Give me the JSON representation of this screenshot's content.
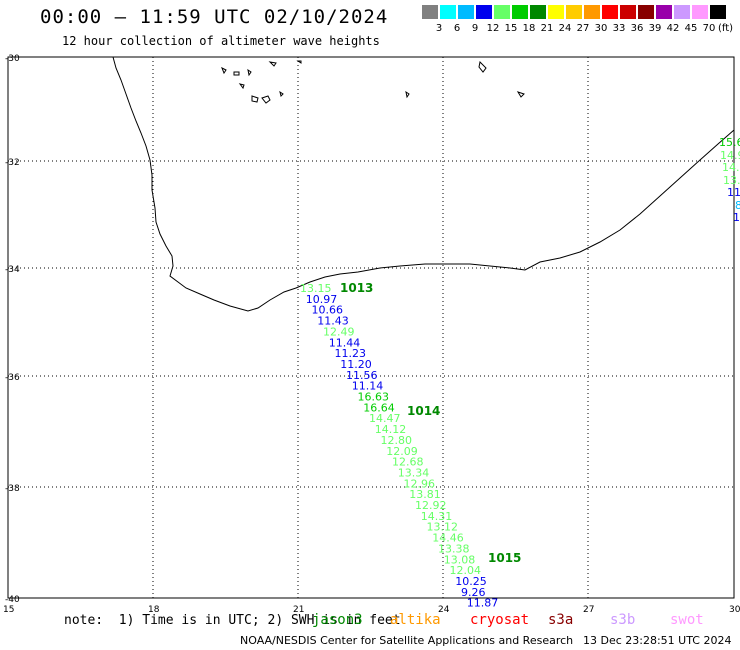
{
  "header": {
    "title": "00:00 – 11:59 UTC 02/10/2024",
    "subtitle": "12 hour collection of altimeter wave heights"
  },
  "legend": {
    "colors": [
      "#808080",
      "#00ffff",
      "#00bbff",
      "#0000ee",
      "#66ff66",
      "#00cc00",
      "#008800",
      "#ffff00",
      "#ffcc00",
      "#ff9900",
      "#ff0000",
      "#cc0000",
      "#880000",
      "#9900aa",
      "#cc99ff",
      "#ff99ff",
      "#000000"
    ],
    "labels": [
      "3",
      "6",
      "9",
      "12",
      "15",
      "18",
      "21",
      "24",
      "27",
      "30",
      "33",
      "36",
      "39",
      "42",
      "45",
      "70"
    ],
    "unit": "(ft)"
  },
  "axes": {
    "lat_labels": [
      "-30",
      "-32",
      "-34",
      "-36",
      "-38",
      "-40"
    ],
    "lon_labels": [
      "15",
      "18",
      "21",
      "24",
      "27",
      "30"
    ]
  },
  "track1": {
    "pass_label": "1013",
    "values": [
      "13.15",
      "10.97",
      "10.66",
      "11.43",
      "12.49",
      "11.44",
      "11.23",
      "11.20",
      "11.56",
      "11.14",
      "16.63",
      "16.64",
      "14.47",
      "14.12",
      "12.80",
      "12.09",
      "12.68",
      "13.34",
      "12.96",
      "13.81",
      "12.92",
      "14.31",
      "13.12",
      "14.46",
      "13.38",
      "13.08",
      "12.04",
      "10.25",
      "9.26",
      "11.87"
    ],
    "colors": [
      "#66ff66",
      "#0000ee",
      "#0000ee",
      "#0000ee",
      "#66ff66",
      "#0000ee",
      "#0000ee",
      "#0000ee",
      "#0000ee",
      "#0000ee",
      "#00cc00",
      "#00cc00",
      "#66ff66",
      "#66ff66",
      "#66ff66",
      "#66ff66",
      "#66ff66",
      "#66ff66",
      "#66ff66",
      "#66ff66",
      "#66ff66",
      "#66ff66",
      "#66ff66",
      "#66ff66",
      "#66ff66",
      "#66ff66",
      "#66ff66",
      "#0000ee",
      "#0000ee",
      "#0000ee"
    ]
  },
  "time_labels": [
    "1013",
    "1014",
    "1015"
  ],
  "track2": {
    "values": [
      "15.6",
      "14.9",
      "14.",
      "13.",
      "11",
      "8",
      "1"
    ],
    "colors": [
      "#00cc00",
      "#66ff66",
      "#66ff66",
      "#66ff66",
      "#0000ee",
      "#00bbff",
      "#0000ee"
    ]
  },
  "footer": {
    "note": "note:  1) Time is in UTC; 2) SWH is in feet",
    "satellites": [
      {
        "name": "jason3",
        "color": "#008800"
      },
      {
        "name": "altika",
        "color": "#ff9900"
      },
      {
        "name": "cryosat",
        "color": "#ff0000"
      },
      {
        "name": "s3a",
        "color": "#880000"
      },
      {
        "name": "s3b",
        "color": "#cc99ff"
      },
      {
        "name": "swot",
        "color": "#ff99ff"
      }
    ],
    "credit": "NOAA/NESDIS Center for Satellite Applications and Research",
    "timestamp": "13 Dec 23:28:51 UTC 2024"
  }
}
